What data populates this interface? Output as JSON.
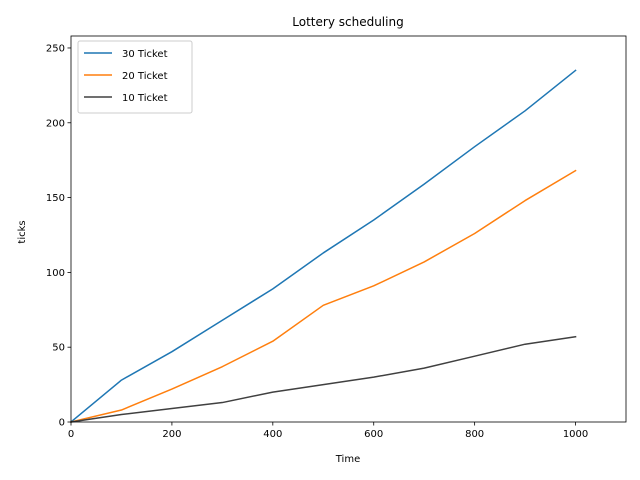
{
  "chart_data": {
    "type": "line",
    "title": "Lottery scheduling",
    "xlabel": "Time",
    "ylabel": "ticks",
    "xlim": [
      0,
      1100
    ],
    "ylim": [
      0,
      258
    ],
    "xticks": [
      0,
      200,
      400,
      600,
      800,
      1000
    ],
    "yticks": [
      0,
      50,
      100,
      150,
      200,
      250
    ],
    "grid": false,
    "legend_position": "top-left",
    "x": [
      0,
      100,
      200,
      300,
      400,
      500,
      600,
      700,
      800,
      900,
      1000
    ],
    "series": [
      {
        "name": "30 Ticket",
        "color": "#1f77b4",
        "values": [
          0,
          28,
          47,
          68,
          89,
          113,
          135,
          159,
          184,
          208,
          235
        ]
      },
      {
        "name": "20 Ticket",
        "color": "#ff7f0e",
        "values": [
          0,
          8,
          22,
          37,
          54,
          78,
          91,
          107,
          126,
          148,
          168
        ]
      },
      {
        "name": "10 Ticket",
        "color": "#404040",
        "values": [
          0,
          5,
          9,
          13,
          20,
          25,
          30,
          36,
          44,
          52,
          57
        ]
      }
    ]
  }
}
